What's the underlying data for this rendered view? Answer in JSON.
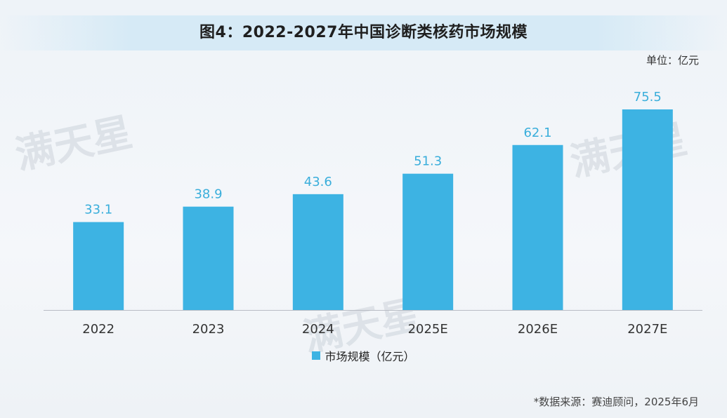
{
  "header": {
    "title": "图4：2022-2027年中国诊断类核药市场规模",
    "unit": "单位：亿元"
  },
  "footer": {
    "source": "*数据来源：赛迪顾问，2025年6月"
  },
  "watermarks": [
    {
      "text": "满天星"
    },
    {
      "text": "满天星"
    },
    {
      "text": "满天星"
    }
  ],
  "colors": {
    "bar": "#3db3e3",
    "label": "#3aaedb",
    "axis": "#b8bcc4",
    "tick_text": "#333333"
  },
  "chart_data": {
    "type": "bar",
    "title": "图4：2022-2027年中国诊断类核药市场规模",
    "categories": [
      "2022",
      "2023",
      "2024",
      "2025E",
      "2026E",
      "2027E"
    ],
    "series": [
      {
        "name": "市场规模（亿元）",
        "values": [
          33.1,
          38.9,
          43.6,
          51.3,
          62.1,
          75.5
        ],
        "value_labels": [
          "33.1",
          "38.9",
          "43.6",
          "51.3",
          "62.1",
          "75.5"
        ]
      }
    ],
    "ylim": [
      0,
      75.5
    ],
    "xlabel": "",
    "ylabel": "",
    "grid": false,
    "legend_position": "bottom"
  }
}
